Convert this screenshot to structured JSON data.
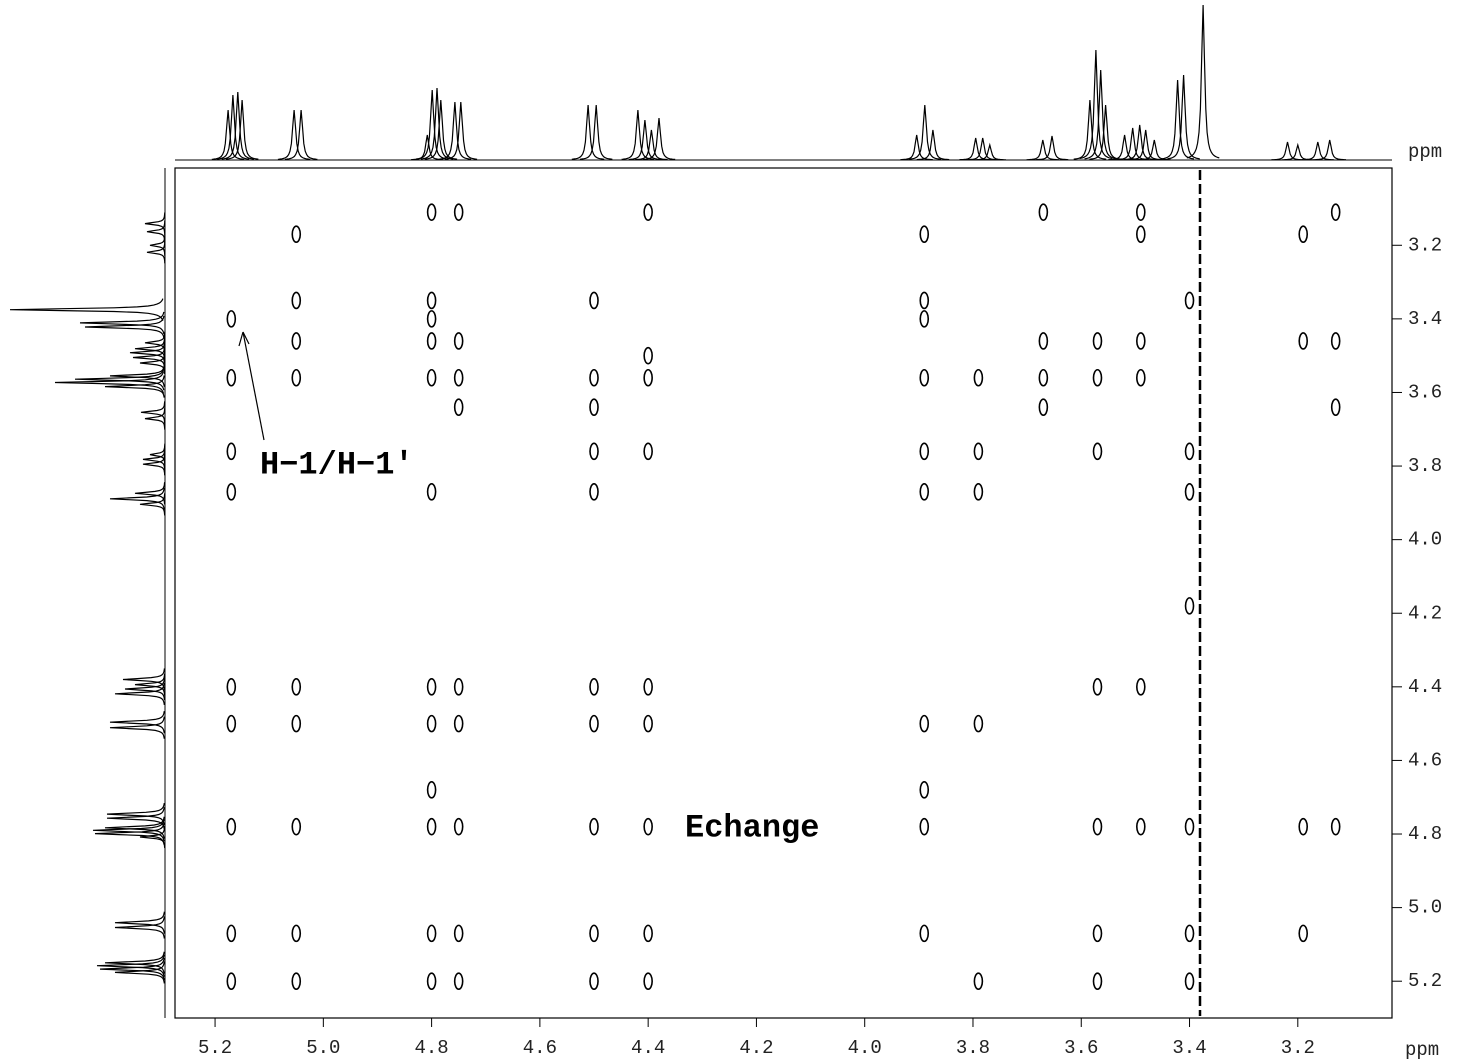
{
  "chart_data": {
    "type": "nmr2d",
    "x_label": "ppm",
    "y_label": "ppm",
    "xlim": [
      5.274,
      3.026
    ],
    "ylim": [
      2.99,
      5.3
    ],
    "xticks": [
      5.2,
      {
        "value": 5,
        "label": "5.0"
      },
      4.8,
      4.6,
      4.4,
      4.2,
      {
        "value": 4,
        "label": "4.0"
      },
      3.8,
      3.6,
      3.4,
      3.2
    ],
    "yticks": [
      3.2,
      3.4,
      3.6,
      3.8,
      {
        "value": 4,
        "label": "4.0"
      },
      4.2,
      4.4,
      4.6,
      4.8,
      {
        "value": 5,
        "label": "5.0"
      },
      5.2
    ],
    "color": "#000000",
    "annotations": [
      {
        "text": "H−1/H−1′",
        "x": 5.17,
        "y": 3.4
      },
      {
        "text": "Echange"
      }
    ],
    "projection": {
      "x": [
        5.176,
        5.167,
        5.158,
        5.15,
        5.054,
        5.041,
        4.808,
        4.799,
        4.79,
        4.783,
        4.757,
        4.746,
        4.511,
        4.496,
        4.419,
        4.406,
        4.394,
        4.38,
        3.904,
        3.889,
        3.874,
        3.795,
        3.782,
        3.769,
        3.671,
        3.654,
        3.584,
        3.573,
        3.564,
        3.555,
        3.52,
        3.505,
        3.492,
        3.481,
        3.465,
        3.422,
        3.411,
        3.375,
        3.219,
        3.2,
        3.163,
        3.141
      ],
      "heights": [
        50,
        65,
        68,
        60,
        50,
        50,
        25,
        70,
        72,
        60,
        58,
        58,
        55,
        55,
        50,
        40,
        30,
        42,
        25,
        55,
        30,
        22,
        22,
        15,
        20,
        24,
        60,
        110,
        90,
        55,
        25,
        32,
        35,
        30,
        20,
        80,
        85,
        155,
        18,
        15,
        18,
        20
      ]
    },
    "series": [
      {
        "x": [
          5.17,
          5.17,
          5.17,
          5.17,
          5.17,
          5.17,
          5.17,
          5.17,
          5.17,
          5.05,
          5.05,
          5.05,
          5.05,
          5.05,
          5.05,
          5.05,
          5.05,
          5.05,
          4.8,
          4.8,
          4.8,
          4.8,
          4.8,
          4.8,
          4.8,
          4.8,
          4.8,
          4.8,
          4.8,
          4.8,
          4.75,
          4.75,
          4.75,
          4.75,
          4.75,
          4.75,
          4.75,
          4.75,
          4.75,
          4.5,
          4.5,
          4.5,
          4.5,
          4.5,
          4.5,
          4.5,
          4.5,
          4.5,
          4.5,
          4.4,
          4.4,
          4.4,
          4.4,
          4.4,
          4.4,
          4.4,
          4.4,
          4.4,
          3.89,
          3.89,
          3.89,
          3.89,
          3.89,
          3.89,
          3.89,
          3.89,
          3.89,
          3.89,
          3.79,
          3.79,
          3.79,
          3.79,
          3.79,
          3.67,
          3.67,
          3.67,
          3.67,
          3.57,
          3.57,
          3.57,
          3.57,
          3.57,
          3.57,
          3.57,
          3.49,
          3.49,
          3.49,
          3.49,
          3.49,
          3.49,
          3.4,
          3.4,
          3.4,
          3.4,
          3.4,
          3.4,
          3.4,
          3.19,
          3.19,
          3.19,
          3.19,
          3.13,
          3.13,
          3.13,
          3.13
        ],
        "y": [
          3.4,
          3.56,
          3.76,
          3.87,
          4.4,
          4.5,
          4.78,
          5.07,
          5.2,
          3.17,
          3.35,
          3.46,
          3.56,
          4.4,
          4.5,
          4.78,
          5.07,
          5.2,
          3.11,
          3.35,
          3.4,
          3.46,
          3.56,
          3.87,
          4.4,
          4.5,
          4.68,
          4.78,
          5.07,
          5.2,
          3.11,
          3.46,
          3.56,
          3.64,
          4.4,
          4.5,
          4.78,
          5.07,
          5.2,
          3.35,
          3.56,
          3.64,
          3.76,
          3.87,
          4.4,
          4.5,
          4.78,
          5.07,
          5.2,
          3.11,
          3.5,
          3.56,
          3.76,
          4.4,
          4.5,
          4.78,
          5.07,
          5.2,
          3.17,
          3.35,
          3.4,
          3.56,
          3.76,
          3.87,
          4.5,
          4.68,
          4.78,
          5.07,
          3.56,
          3.76,
          3.87,
          4.5,
          5.2,
          3.11,
          3.46,
          3.56,
          3.64,
          3.46,
          3.56,
          3.76,
          4.4,
          4.78,
          5.07,
          5.2,
          3.11,
          3.17,
          3.46,
          3.56,
          4.4,
          4.78,
          3.35,
          3.76,
          3.87,
          4.18,
          4.78,
          5.07,
          5.2,
          3.17,
          3.46,
          4.78,
          5.07,
          3.11,
          3.46,
          3.64,
          4.78
        ]
      }
    ]
  }
}
